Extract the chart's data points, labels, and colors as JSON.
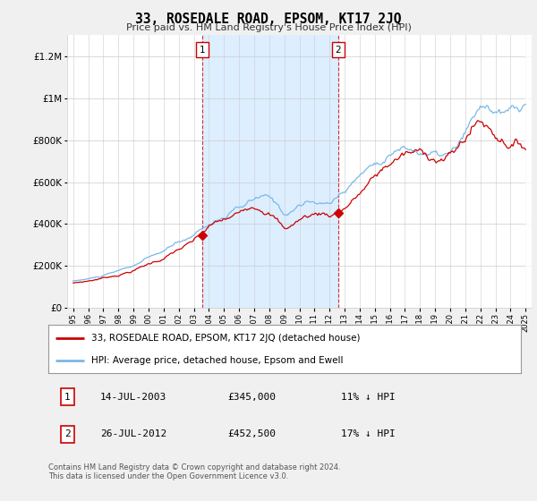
{
  "title": "33, ROSEDALE ROAD, EPSOM, KT17 2JQ",
  "subtitle": "Price paid vs. HM Land Registry's House Price Index (HPI)",
  "footer": "Contains HM Land Registry data © Crown copyright and database right 2024.\nThis data is licensed under the Open Government Licence v3.0.",
  "legend_line1": "33, ROSEDALE ROAD, EPSOM, KT17 2JQ (detached house)",
  "legend_line2": "HPI: Average price, detached house, Epsom and Ewell",
  "transaction1_date": "14-JUL-2003",
  "transaction1_price": "£345,000",
  "transaction1_hpi": "11% ↓ HPI",
  "transaction2_date": "26-JUL-2012",
  "transaction2_price": "£452,500",
  "transaction2_hpi": "17% ↓ HPI",
  "hpi_color": "#7ab8e8",
  "price_color": "#cc0000",
  "background_color": "#f0f0f0",
  "plot_bg_color": "#ffffff",
  "shade_color": "#ddeeff",
  "transaction1_x": 2003.54,
  "transaction1_y": 345000,
  "transaction2_x": 2012.57,
  "transaction2_y": 452500,
  "ylim": [
    0,
    1300000
  ],
  "xlim": [
    1994.6,
    2025.4
  ]
}
